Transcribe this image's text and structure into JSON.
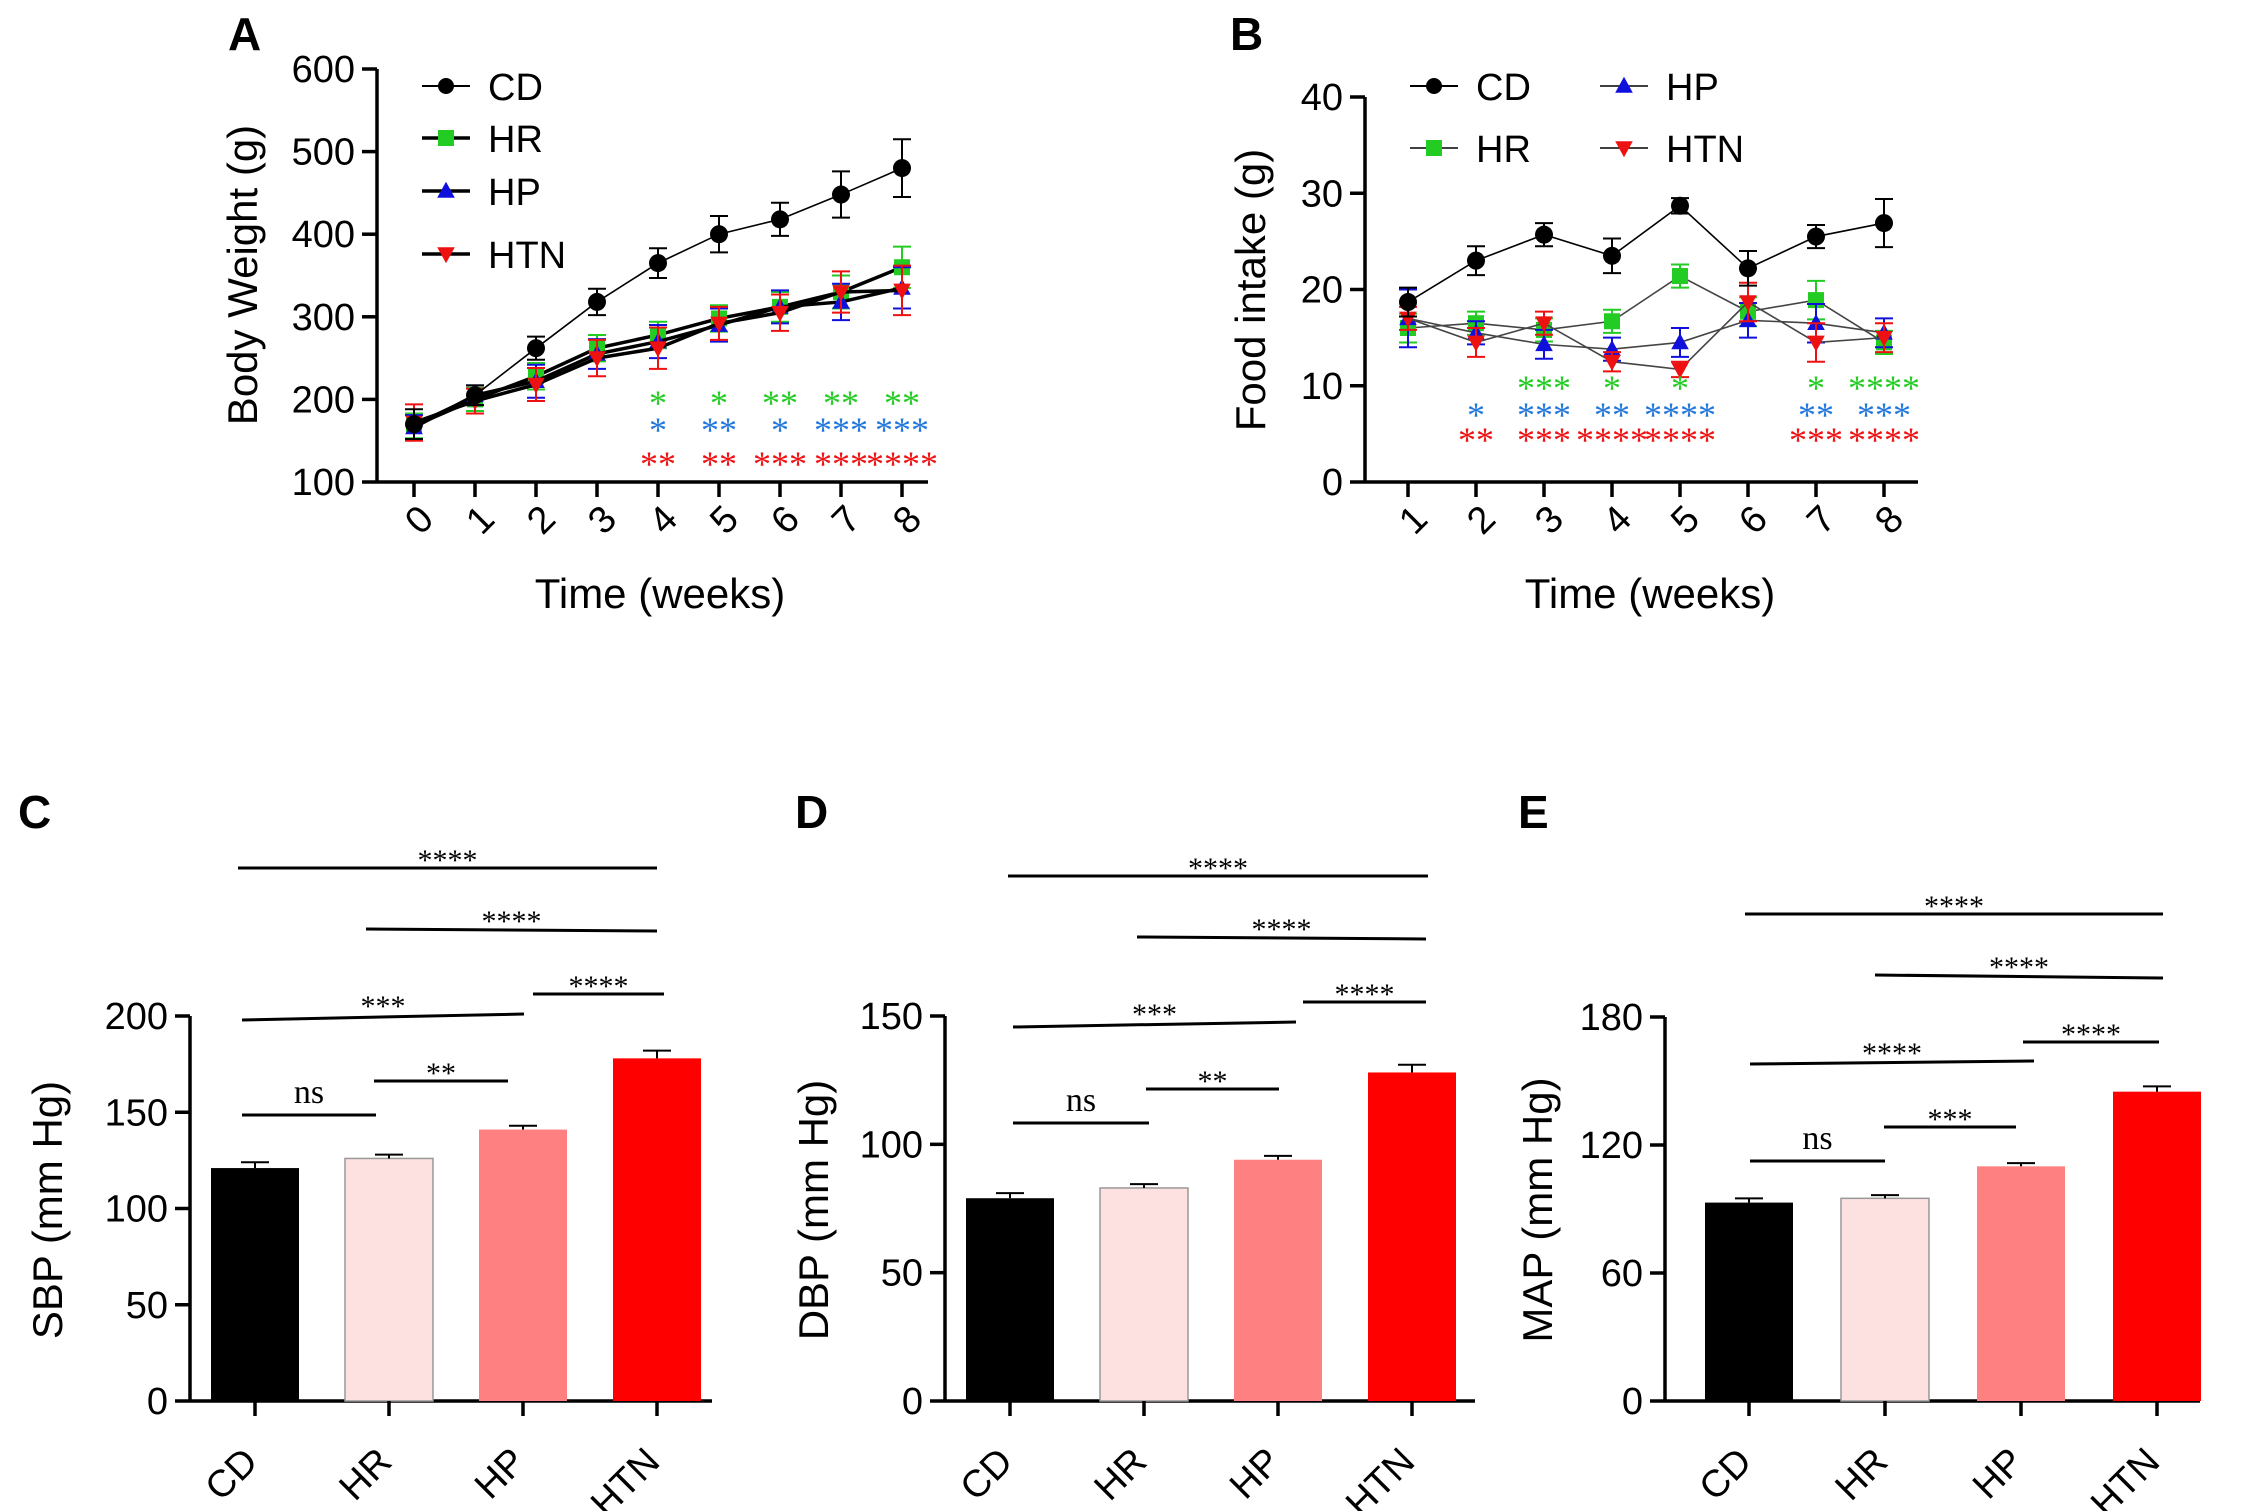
{
  "colors": {
    "CD": "#000000",
    "HR": "#22cc22",
    "HP": "#1010dd",
    "HTN": "#ee1111",
    "star_green": "#22cc22",
    "star_blue": "#2277dd",
    "star_red": "#ee1111",
    "bar_CD": "#000000",
    "bar_HR": "#fde0e0",
    "bar_HP": "#ff8080",
    "bar_HTN": "#ff0000"
  },
  "chart_data": [
    {
      "panel": "A",
      "type": "line",
      "title": "",
      "xlabel": "Time (weeks)",
      "ylabel": "Body Weight (g)",
      "x": [
        0,
        1,
        2,
        3,
        4,
        5,
        6,
        7,
        8
      ],
      "xticks": [
        "0",
        "1",
        "2",
        "3",
        "4",
        "5",
        "6",
        "7",
        "8"
      ],
      "ylim": [
        100,
        600
      ],
      "yticks": [
        100,
        200,
        300,
        400,
        500,
        600
      ],
      "legend": [
        "CD",
        "HR",
        "HP",
        "HTN"
      ],
      "series": [
        {
          "name": "CD",
          "marker": "circle",
          "values": [
            170,
            205,
            262,
            318,
            365,
            400,
            418,
            448,
            480
          ],
          "errors": [
            18,
            12,
            14,
            16,
            18,
            22,
            20,
            28,
            35
          ]
        },
        {
          "name": "HR",
          "marker": "square",
          "values": [
            168,
            200,
            228,
            262,
            278,
            298,
            312,
            330,
            360
          ],
          "errors": [
            15,
            14,
            16,
            16,
            16,
            16,
            18,
            20,
            25
          ]
        },
        {
          "name": "HP",
          "marker": "triangle-up",
          "values": [
            166,
            205,
            222,
            255,
            270,
            290,
            312,
            318,
            335
          ],
          "errors": [
            15,
            12,
            20,
            18,
            20,
            20,
            20,
            22,
            25
          ]
        },
        {
          "name": "HTN",
          "marker": "triangle-down",
          "values": [
            172,
            198,
            218,
            250,
            262,
            292,
            305,
            330,
            332
          ],
          "errors": [
            22,
            15,
            20,
            22,
            25,
            20,
            22,
            25,
            30
          ]
        }
      ],
      "significance": [
        {
          "x": 4,
          "green": "*",
          "blue": "*",
          "red": "**"
        },
        {
          "x": 5,
          "green": "*",
          "blue": "**",
          "red": "**"
        },
        {
          "x": 6,
          "green": "**",
          "blue": "*",
          "red": "***"
        },
        {
          "x": 7,
          "green": "**",
          "blue": "***",
          "red": "***"
        },
        {
          "x": 8,
          "green": "**",
          "blue": "***",
          "red": "****"
        }
      ]
    },
    {
      "panel": "B",
      "type": "line",
      "title": "",
      "xlabel": "Time (weeks)",
      "ylabel": "Food intake (g)",
      "x": [
        1,
        2,
        3,
        4,
        5,
        6,
        7,
        8
      ],
      "xticks": [
        "1",
        "2",
        "3",
        "4",
        "5",
        "6",
        "7",
        "8"
      ],
      "ylim": [
        0,
        40
      ],
      "yticks": [
        0,
        10,
        20,
        30,
        40
      ],
      "legend": [
        "CD",
        "HR",
        "HP",
        "HTN"
      ],
      "series": [
        {
          "name": "CD",
          "marker": "circle",
          "values": [
            18.7,
            23.0,
            25.7,
            23.5,
            28.7,
            22.2,
            25.5,
            26.9
          ],
          "errors": [
            1.5,
            1.5,
            1.2,
            1.8,
            0.8,
            1.8,
            1.2,
            2.5
          ]
        },
        {
          "name": "HR",
          "marker": "square",
          "values": [
            16.0,
            16.5,
            15.8,
            16.7,
            21.4,
            17.7,
            18.9,
            14.5
          ],
          "errors": [
            1.5,
            1.2,
            1.2,
            1.2,
            1.2,
            1.5,
            2.0,
            1.2
          ]
        },
        {
          "name": "HP",
          "marker": "triangle-up",
          "values": [
            17.0,
            15.5,
            14.3,
            13.8,
            14.5,
            16.8,
            16.5,
            15.5
          ],
          "errors": [
            3.0,
            1.2,
            1.5,
            1.2,
            1.5,
            1.8,
            2.0,
            1.5
          ]
        },
        {
          "name": "HTN",
          "marker": "triangle-down",
          "values": [
            17.0,
            14.5,
            16.5,
            12.5,
            11.7,
            18.7,
            14.5,
            15.0
          ],
          "errors": [
            1.2,
            1.5,
            1.2,
            1.0,
            0.8,
            2.0,
            2.0,
            1.5
          ]
        }
      ],
      "significance": [
        {
          "x": 2,
          "green": "",
          "blue": "*",
          "red": "**"
        },
        {
          "x": 3,
          "green": "***",
          "blue": "***",
          "red": "***"
        },
        {
          "x": 4,
          "green": "*",
          "blue": "**",
          "red": "****"
        },
        {
          "x": 5,
          "green": "*",
          "blue": "****",
          "red": "****"
        },
        {
          "x": 7,
          "green": "*",
          "blue": "**",
          "red": "***"
        },
        {
          "x": 8,
          "green": "****",
          "blue": "***",
          "red": "****"
        }
      ]
    },
    {
      "panel": "C",
      "type": "bar",
      "title": "",
      "xlabel": "",
      "ylabel": "SBP (mm Hg)",
      "categories": [
        "CD",
        "HR",
        "HP",
        "HTN"
      ],
      "values": [
        121,
        126,
        141,
        178
      ],
      "errors": [
        3,
        2,
        2,
        4
      ],
      "ylim": [
        0,
        200
      ],
      "yticks": [
        0,
        50,
        100,
        150,
        200
      ],
      "comparisons": [
        {
          "from": 0,
          "to": 1,
          "label": "ns"
        },
        {
          "from": 1,
          "to": 2,
          "label": "**"
        },
        {
          "from": 0,
          "to": 2,
          "label": "***"
        },
        {
          "from": 2,
          "to": 3,
          "label": "****"
        },
        {
          "from": 1,
          "to": 3,
          "label": "****"
        },
        {
          "from": 0,
          "to": 3,
          "label": "****"
        }
      ]
    },
    {
      "panel": "D",
      "type": "bar",
      "title": "",
      "xlabel": "",
      "ylabel": "DBP (mm Hg)",
      "categories": [
        "CD",
        "HR",
        "HP",
        "HTN"
      ],
      "values": [
        79,
        83,
        94,
        128
      ],
      "errors": [
        2,
        1.5,
        1.5,
        3
      ],
      "ylim": [
        0,
        150
      ],
      "yticks": [
        0,
        50,
        100,
        150
      ],
      "comparisons": [
        {
          "from": 0,
          "to": 1,
          "label": "ns"
        },
        {
          "from": 1,
          "to": 2,
          "label": "**"
        },
        {
          "from": 0,
          "to": 2,
          "label": "***"
        },
        {
          "from": 2,
          "to": 3,
          "label": "****"
        },
        {
          "from": 1,
          "to": 3,
          "label": "****"
        },
        {
          "from": 0,
          "to": 3,
          "label": "****"
        }
      ]
    },
    {
      "panel": "E",
      "type": "bar",
      "title": "",
      "xlabel": "",
      "ylabel": "MAP (mm Hg)",
      "categories": [
        "CD",
        "HR",
        "HP",
        "HTN"
      ],
      "values": [
        93,
        95,
        110,
        145
      ],
      "errors": [
        2,
        1.5,
        1.5,
        2.5
      ],
      "ylim": [
        0,
        180
      ],
      "yticks": [
        0,
        60,
        120,
        180
      ],
      "comparisons": [
        {
          "from": 0,
          "to": 1,
          "label": "ns"
        },
        {
          "from": 1,
          "to": 2,
          "label": "***"
        },
        {
          "from": 0,
          "to": 2,
          "label": "****"
        },
        {
          "from": 2,
          "to": 3,
          "label": "****"
        },
        {
          "from": 1,
          "to": 3,
          "label": "****"
        },
        {
          "from": 0,
          "to": 3,
          "label": "****"
        }
      ]
    }
  ]
}
